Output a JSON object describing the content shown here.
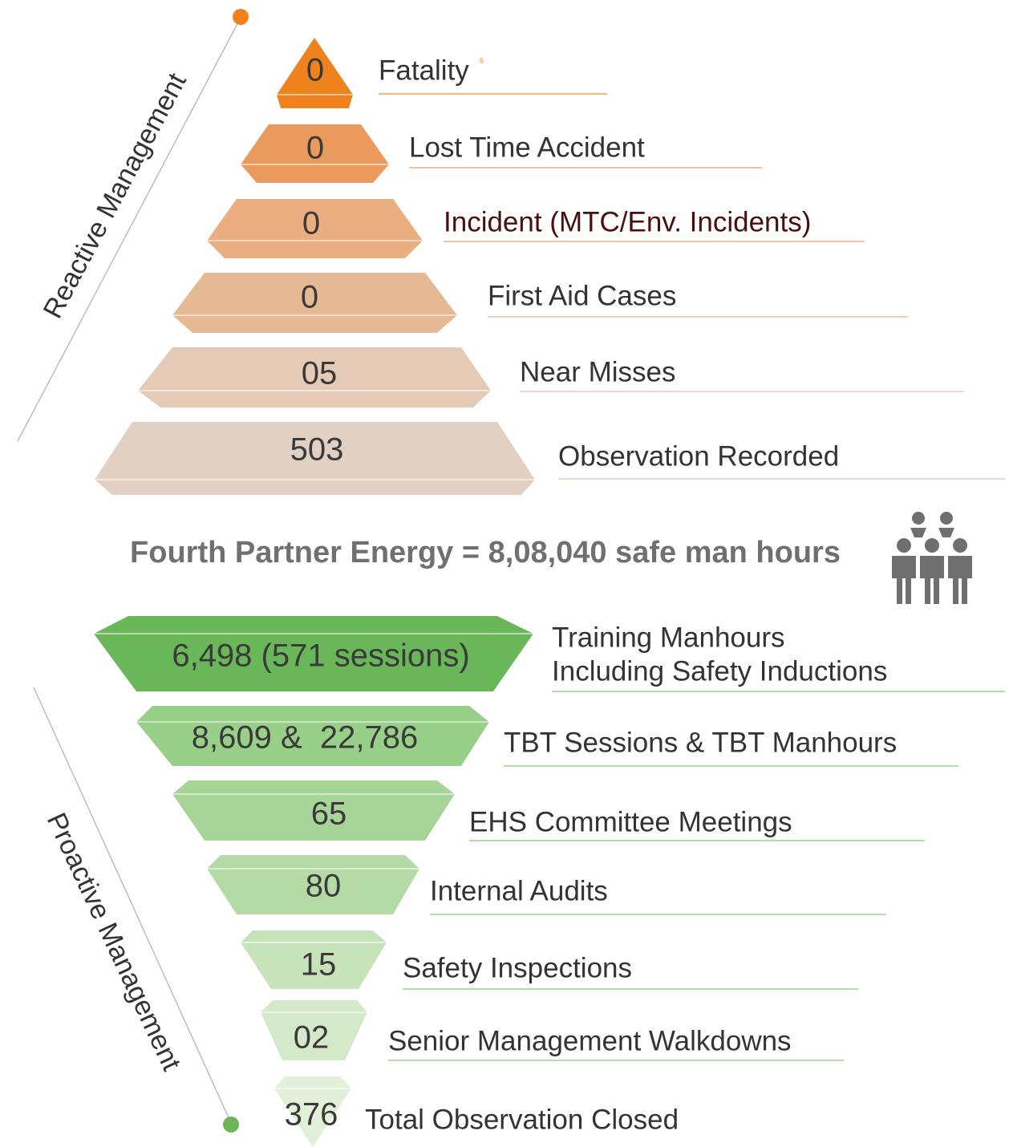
{
  "side_labels": {
    "reactive": "Reactive Management",
    "proactive": "Proactive Management"
  },
  "reactive": [
    {
      "value": "0",
      "label": "Fatality",
      "note": "6"
    },
    {
      "value": "0",
      "label": "Lost Time Accident"
    },
    {
      "value": "0",
      "label": "Incident (MTC/Env. Incidents)"
    },
    {
      "value": "0",
      "label": "First Aid Cases"
    },
    {
      "value": "05",
      "label": "Near Misses"
    },
    {
      "value": "503",
      "label": "Observation Recorded"
    }
  ],
  "center": "Fourth Partner Energy = 8,08,040 safe man hours",
  "proactive": [
    {
      "value": "6,498 (571 sessions)",
      "label": [
        "Training Manhours",
        "Including Safety Inductions"
      ]
    },
    {
      "value": "8,609 &  22,786",
      "label": [
        "TBT Sessions & TBT Manhours"
      ]
    },
    {
      "value": "65",
      "label": [
        "EHS Committee Meetings"
      ]
    },
    {
      "value": "80",
      "label": [
        "Internal Audits"
      ]
    },
    {
      "value": "15",
      "label": [
        "Safety Inspections"
      ]
    },
    {
      "value": "02",
      "label": [
        "Senior Management Walkdowns"
      ]
    },
    {
      "value": "376",
      "label": [
        "Total Observation Closed"
      ]
    }
  ]
}
